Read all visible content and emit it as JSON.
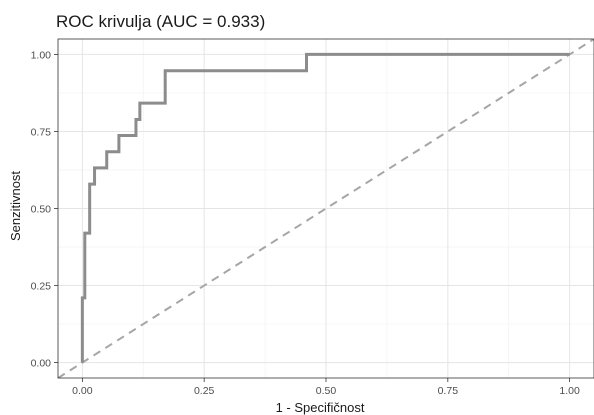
{
  "chart_data": {
    "type": "line",
    "title": "ROC krivulja (AUC = 0.933)",
    "xlabel": "1 - Specifičnost",
    "ylabel": "Senzitivnost",
    "xlim": [
      -0.05,
      1.05
    ],
    "ylim": [
      -0.05,
      1.05
    ],
    "xticks": [
      0.0,
      0.25,
      0.5,
      0.75,
      1.0
    ],
    "yticks": [
      0.0,
      0.25,
      0.5,
      0.75,
      1.0
    ],
    "xtick_labels": [
      "0.00",
      "0.25",
      "0.50",
      "0.75",
      "1.00"
    ],
    "ytick_labels": [
      "0.00",
      "0.25",
      "0.50",
      "0.75",
      "1.00"
    ],
    "grid": true,
    "series": [
      {
        "style": "solid",
        "color": "#8c8c8c",
        "x": [
          0.0,
          0.0,
          0.005,
          0.005,
          0.015,
          0.015,
          0.02,
          0.02,
          0.025,
          0.025,
          0.033,
          0.033,
          0.05,
          0.05,
          0.075,
          0.075,
          0.11,
          0.11,
          0.118,
          0.118,
          0.17,
          0.17,
          0.46,
          0.46,
          1.0
        ],
        "y": [
          0.0,
          0.21,
          0.21,
          0.42,
          0.42,
          0.579,
          0.579,
          0.579,
          0.579,
          0.632,
          0.632,
          0.632,
          0.632,
          0.684,
          0.684,
          0.737,
          0.737,
          0.789,
          0.789,
          0.842,
          0.842,
          0.947,
          0.947,
          1.0,
          1.0
        ]
      },
      {
        "style": "dashed",
        "color": "#a6a6a6",
        "x": [
          -0.05,
          1.05
        ],
        "y": [
          -0.05,
          1.05
        ]
      }
    ]
  }
}
